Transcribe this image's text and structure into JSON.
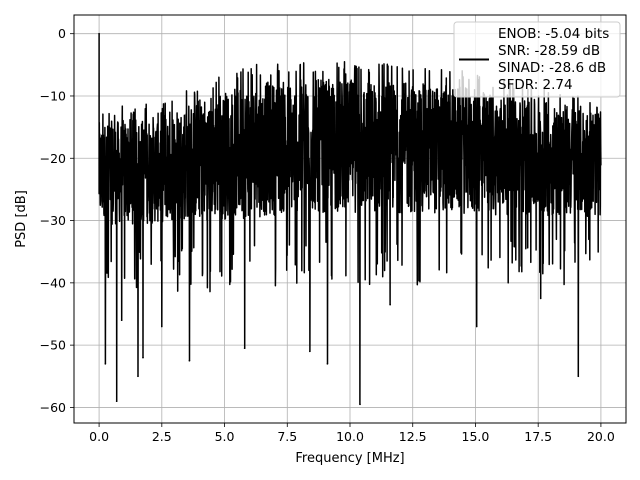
{
  "chart_data": {
    "type": "line",
    "xlabel": "Frequency [MHz]",
    "ylabel": "PSD [dB]",
    "xlim": [
      -1.0,
      21.0
    ],
    "ylim": [
      -62.5,
      3.0
    ],
    "grid": true,
    "xticks": [
      0.0,
      2.5,
      5.0,
      7.5,
      10.0,
      12.5,
      15.0,
      17.5,
      20.0
    ],
    "xtick_labels": [
      "0.0",
      "2.5",
      "5.0",
      "7.5",
      "10.0",
      "12.5",
      "15.0",
      "17.5",
      "20.0"
    ],
    "yticks": [
      0,
      -10,
      -20,
      -30,
      -40,
      -50,
      -60
    ],
    "ytick_labels": [
      "0",
      "−10",
      "−20",
      "−30",
      "−40",
      "−50",
      "−60"
    ],
    "legend": {
      "placement": "top-right",
      "entries": [
        "ENOB: -5.04 bits",
        "SNR: -28.59 dB",
        "SINAD: -28.6 dB",
        "SFDR: 2.74"
      ]
    },
    "series": [
      {
        "name": "ENOB: -5.04 bits\nSNR: -28.59 dB\nSINAD: -28.6 dB\nSFDR: 2.74",
        "color": "#000000",
        "x_range": [
          0.0,
          20.0
        ],
        "peak": {
          "x": 0.0,
          "y": 0.0
        },
        "upper_envelope": {
          "x": [
            0.1,
            2.0,
            4.0,
            6.0,
            8.0,
            10.0,
            12.0,
            14.0,
            16.0,
            18.0,
            20.0
          ],
          "y": [
            -12.0,
            -11.0,
            -7.5,
            -5.0,
            -4.5,
            -4.5,
            -5.0,
            -5.5,
            -7.0,
            -8.5,
            -9.5
          ]
        },
        "lower_envelope": {
          "x": [
            0.1,
            2.0,
            4.0,
            6.0,
            8.0,
            10.0,
            12.0,
            14.0,
            16.0,
            18.0,
            20.0
          ],
          "y": [
            -34.0,
            -34.0,
            -34.0,
            -34.0,
            -33.0,
            -33.0,
            -33.0,
            -33.0,
            -33.0,
            -33.0,
            -33.0
          ]
        },
        "notable_dips": [
          {
            "x": 0.25,
            "y": -53.0
          },
          {
            "x": 0.7,
            "y": -59.0
          },
          {
            "x": 0.9,
            "y": -46.0
          },
          {
            "x": 1.55,
            "y": -55.0
          },
          {
            "x": 1.75,
            "y": -52.0
          },
          {
            "x": 2.5,
            "y": -47.0
          },
          {
            "x": 3.6,
            "y": -52.5
          },
          {
            "x": 5.8,
            "y": -50.5
          },
          {
            "x": 8.4,
            "y": -51.0
          },
          {
            "x": 9.1,
            "y": -53.0
          },
          {
            "x": 10.4,
            "y": -59.5
          },
          {
            "x": 11.6,
            "y": -43.5
          },
          {
            "x": 15.05,
            "y": -47.0
          },
          {
            "x": 17.6,
            "y": -42.5
          },
          {
            "x": 19.1,
            "y": -55.0
          }
        ]
      }
    ]
  }
}
